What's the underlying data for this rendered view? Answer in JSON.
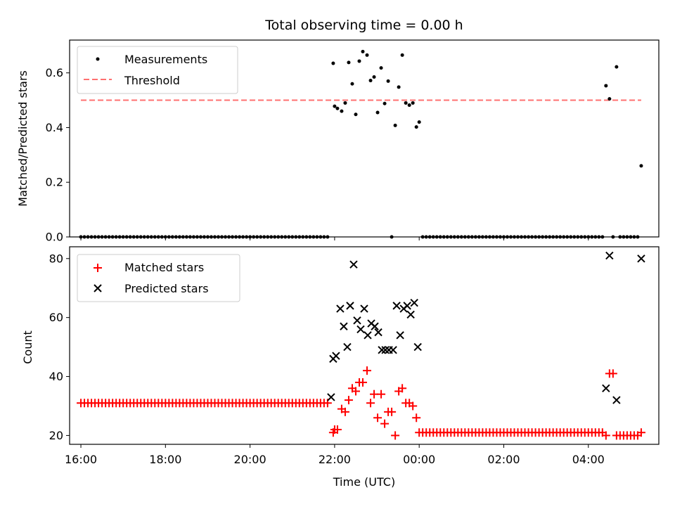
{
  "chart_data": [
    {
      "type": "scatter",
      "title": "Total observing time = 0.00 h",
      "xlabel": "",
      "ylabel": "Matched/Predicted stars",
      "xlim": [
        "15:44",
        "05:40"
      ],
      "ylim": [
        0.0,
        0.72
      ],
      "yticks": [
        "0.0",
        "0.2",
        "0.4",
        "0.6"
      ],
      "xticks": [
        "16:00",
        "18:00",
        "20:00",
        "22:00",
        "00:00",
        "02:00",
        "04:00"
      ],
      "legend": {
        "placement": "upper-left",
        "entries": [
          "Measurements",
          "Threshold"
        ]
      },
      "colors": {
        "measurements": "#000000",
        "threshold": "#ff7070"
      },
      "series": [
        {
          "name": "Measurements",
          "kind": "scatter",
          "zero_run_start": "16:00",
          "zero_run_end": "21:50",
          "zero_run_step_min": 5,
          "zero_run2_start": "00:05",
          "zero_run2_end": "04:15",
          "zero_run2_step_min": 5,
          "points": [
            [
              "21:58",
              0.635
            ],
            [
              "22:00",
              0.478
            ],
            [
              "22:04",
              0.47
            ],
            [
              "22:10",
              0.46
            ],
            [
              "22:15",
              0.49
            ],
            [
              "22:20",
              0.638
            ],
            [
              "22:25",
              0.56
            ],
            [
              "22:30",
              0.448
            ],
            [
              "22:35",
              0.643
            ],
            [
              "22:40",
              0.678
            ],
            [
              "22:46",
              0.665
            ],
            [
              "22:51",
              0.572
            ],
            [
              "22:56",
              0.585
            ],
            [
              "23:01",
              0.455
            ],
            [
              "23:06",
              0.618
            ],
            [
              "23:11",
              0.488
            ],
            [
              "23:16",
              0.57
            ],
            [
              "23:21",
              0.0
            ],
            [
              "23:26",
              0.408
            ],
            [
              "23:31",
              0.548
            ],
            [
              "23:36",
              0.665
            ],
            [
              "23:41",
              0.49
            ],
            [
              "23:46",
              0.482
            ],
            [
              "23:51",
              0.49
            ],
            [
              "23:56",
              0.402
            ],
            [
              "00:00",
              0.42
            ],
            [
              "04:20",
              0.0
            ],
            [
              "04:25",
              0.553
            ],
            [
              "04:30",
              0.505
            ],
            [
              "04:35",
              0.0
            ],
            [
              "04:40",
              0.622
            ],
            [
              "04:45",
              0.0
            ],
            [
              "04:50",
              0.0
            ],
            [
              "04:55",
              0.0
            ],
            [
              "05:00",
              0.0
            ],
            [
              "05:05",
              0.0
            ],
            [
              "05:10",
              0.0
            ],
            [
              "05:15",
              0.26
            ]
          ]
        },
        {
          "name": "Threshold",
          "kind": "dashed-line",
          "y": 0.5,
          "x_start": "16:00",
          "x_end": "05:15"
        }
      ]
    },
    {
      "type": "scatter",
      "title": "",
      "xlabel": "Time (UTC)",
      "ylabel": "Count",
      "xlim": [
        "15:44",
        "05:40"
      ],
      "ylim": [
        17,
        84
      ],
      "yticks": [
        "20",
        "40",
        "60",
        "80"
      ],
      "xticks": [
        "16:00",
        "18:00",
        "20:00",
        "22:00",
        "00:00",
        "02:00",
        "04:00"
      ],
      "legend": {
        "placement": "upper-left",
        "entries": [
          "Matched stars",
          "Predicted stars"
        ]
      },
      "colors": {
        "matched": "#ff0000",
        "predicted": "#000000"
      },
      "series": [
        {
          "name": "Matched stars",
          "marker": "plus",
          "flat_run_start": "16:00",
          "flat_run_end": "21:50",
          "flat_run_step_min": 5,
          "flat_run_value": 31,
          "flat_run2_start": "00:05",
          "flat_run2_end": "04:15",
          "flat_run2_step_min": 5,
          "flat_run2_value": 21,
          "points": [
            [
              "21:58",
              21
            ],
            [
              "22:00",
              22
            ],
            [
              "22:04",
              22
            ],
            [
              "22:10",
              29
            ],
            [
              "22:15",
              28
            ],
            [
              "22:20",
              32
            ],
            [
              "22:25",
              36
            ],
            [
              "22:30",
              35
            ],
            [
              "22:35",
              38
            ],
            [
              "22:40",
              38
            ],
            [
              "22:46",
              42
            ],
            [
              "22:51",
              31
            ],
            [
              "22:56",
              34
            ],
            [
              "23:01",
              26
            ],
            [
              "23:06",
              34
            ],
            [
              "23:11",
              24
            ],
            [
              "23:16",
              28
            ],
            [
              "23:21",
              28
            ],
            [
              "23:26",
              20
            ],
            [
              "23:31",
              35
            ],
            [
              "23:36",
              36
            ],
            [
              "23:41",
              31
            ],
            [
              "23:46",
              31
            ],
            [
              "23:51",
              30
            ],
            [
              "23:56",
              26
            ],
            [
              "00:00",
              21
            ],
            [
              "04:20",
              21
            ],
            [
              "04:25",
              20
            ],
            [
              "04:30",
              41
            ],
            [
              "04:35",
              41
            ],
            [
              "04:40",
              20
            ],
            [
              "04:45",
              20
            ],
            [
              "04:50",
              20
            ],
            [
              "04:55",
              20
            ],
            [
              "05:00",
              20
            ],
            [
              "05:05",
              20
            ],
            [
              "05:10",
              20
            ],
            [
              "05:15",
              21
            ]
          ]
        },
        {
          "name": "Predicted stars",
          "marker": "x",
          "points": [
            [
              "21:55",
              33
            ],
            [
              "21:58",
              46
            ],
            [
              "22:02",
              47
            ],
            [
              "22:08",
              63
            ],
            [
              "22:13",
              57
            ],
            [
              "22:18",
              50
            ],
            [
              "22:22",
              64
            ],
            [
              "22:27",
              78
            ],
            [
              "22:32",
              59
            ],
            [
              "22:37",
              56
            ],
            [
              "22:42",
              63
            ],
            [
              "22:47",
              54
            ],
            [
              "22:52",
              58
            ],
            [
              "22:57",
              57
            ],
            [
              "23:02",
              55
            ],
            [
              "23:07",
              49
            ],
            [
              "23:12",
              49
            ],
            [
              "23:17",
              49
            ],
            [
              "23:23",
              49
            ],
            [
              "23:28",
              64
            ],
            [
              "23:33",
              54
            ],
            [
              "23:38",
              63
            ],
            [
              "23:43",
              64
            ],
            [
              "23:48",
              61
            ],
            [
              "23:53",
              65
            ],
            [
              "23:58",
              50
            ],
            [
              "04:25",
              36
            ],
            [
              "04:30",
              81
            ],
            [
              "04:40",
              32
            ],
            [
              "05:15",
              80
            ]
          ]
        }
      ]
    }
  ]
}
